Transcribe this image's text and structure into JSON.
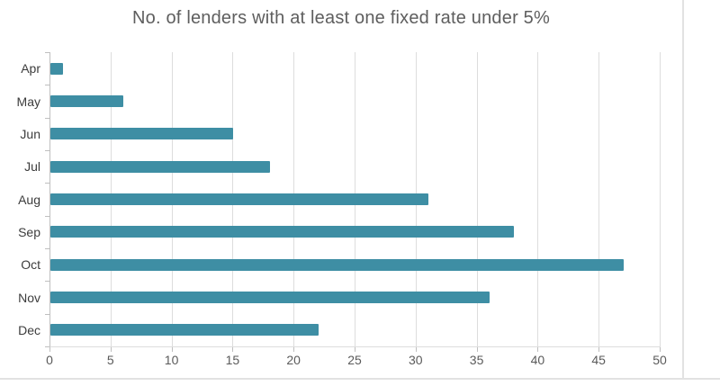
{
  "chart_data": {
    "type": "bar",
    "orientation": "horizontal",
    "title": "No. of lenders with at least one fixed rate under 5%",
    "categories": [
      "Apr",
      "May",
      "Jun",
      "Jul",
      "Aug",
      "Sep",
      "Oct",
      "Nov",
      "Dec"
    ],
    "values": [
      1,
      6,
      15,
      18,
      31,
      38,
      47,
      36,
      22
    ],
    "xlabel": "",
    "ylabel": "",
    "xlim": [
      0,
      50
    ],
    "x_ticks": [
      0,
      5,
      10,
      15,
      20,
      25,
      30,
      35,
      40,
      45,
      50
    ],
    "grid": true,
    "legend": "none",
    "colors": {
      "bar": "#3E8EA4",
      "gridline": "#DDDDDD",
      "axis_line": "#BFBFBF",
      "title_text": "#5E5E5E",
      "category_label": "#3C3C3C",
      "tick_label": "#5A5A5A",
      "card_border": "#E2E2E2"
    }
  }
}
